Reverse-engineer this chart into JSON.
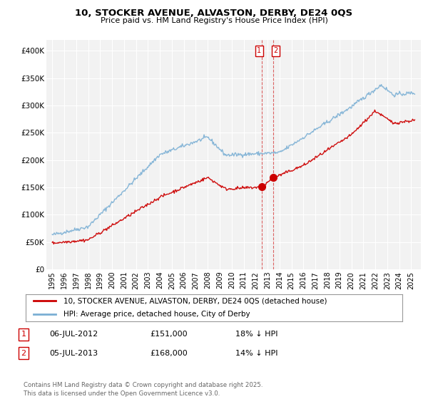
{
  "title_line1": "10, STOCKER AVENUE, ALVASTON, DERBY, DE24 0QS",
  "title_line2": "Price paid vs. HM Land Registry's House Price Index (HPI)",
  "legend_label_red": "10, STOCKER AVENUE, ALVASTON, DERBY, DE24 0QS (detached house)",
  "legend_label_blue": "HPI: Average price, detached house, City of Derby",
  "transaction1_label": "1",
  "transaction1_date": "06-JUL-2012",
  "transaction1_price": "£151,000",
  "transaction1_hpi": "18% ↓ HPI",
  "transaction2_label": "2",
  "transaction2_date": "05-JUL-2013",
  "transaction2_price": "£168,000",
  "transaction2_hpi": "14% ↓ HPI",
  "footer": "Contains HM Land Registry data © Crown copyright and database right 2025.\nThis data is licensed under the Open Government Licence v3.0.",
  "vline1_x": 2012.5,
  "vline2_x": 2013.5,
  "marker1_x": 2012.5,
  "marker1_y": 151000,
  "marker2_x": 2013.5,
  "marker2_y": 168000,
  "ylim": [
    0,
    420000
  ],
  "xlim_start": 1994.5,
  "xlim_end": 2025.8,
  "color_red": "#cc0000",
  "color_blue": "#7aafd4",
  "background_chart": "#f2f2f2",
  "background_fig": "#ffffff",
  "grid_color": "#ffffff"
}
